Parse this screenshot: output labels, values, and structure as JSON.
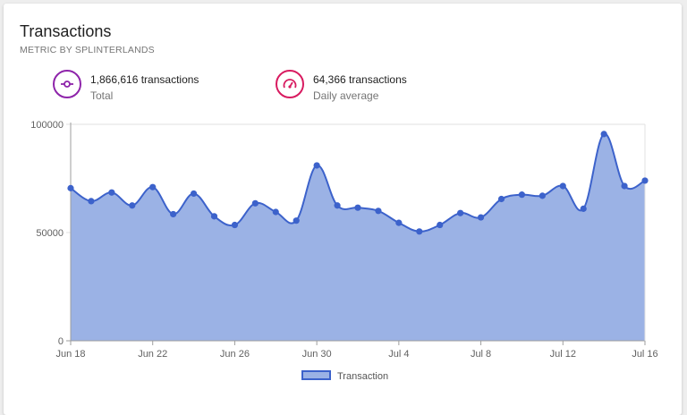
{
  "card": {
    "title": "Transactions",
    "subtitle": "METRIC BY SPLINTERLANDS"
  },
  "stats": [
    {
      "icon": "commit-icon",
      "color": "#8e24aa",
      "value": "1,866,616 transactions",
      "label": "Total"
    },
    {
      "icon": "speedometer-icon",
      "color": "#d81b60",
      "value": "64,366 transactions",
      "label": "Daily average"
    }
  ],
  "colors": {
    "line": "#3c62cb",
    "fill": "#9bb2e5",
    "grid": "#e0e0e0",
    "axis": "#9e9e9e"
  },
  "chart_data": {
    "type": "area",
    "x": [
      "Jun 18",
      "Jun 19",
      "Jun 20",
      "Jun 21",
      "Jun 22",
      "Jun 23",
      "Jun 24",
      "Jun 25",
      "Jun 26",
      "Jun 27",
      "Jun 28",
      "Jun 29",
      "Jun 30",
      "Jul 1",
      "Jul 2",
      "Jul 3",
      "Jul 4",
      "Jul 5",
      "Jul 6",
      "Jul 7",
      "Jul 8",
      "Jul 9",
      "Jul 10",
      "Jul 11",
      "Jul 12",
      "Jul 13",
      "Jul 14",
      "Jul 15",
      "Jul 16"
    ],
    "x_tick_labels": [
      "Jun 18",
      "Jun 22",
      "Jun 26",
      "Jun 30",
      "Jul 4",
      "Jul 8",
      "Jul 12",
      "Jul 16"
    ],
    "series": [
      {
        "name": "Transaction",
        "values": [
          70500,
          64500,
          68500,
          62500,
          71000,
          58500,
          68000,
          57500,
          53500,
          63500,
          59500,
          55500,
          81000,
          62500,
          61500,
          60000,
          54500,
          50500,
          53500,
          59000,
          57000,
          65500,
          67500,
          67000,
          71500,
          61000,
          95500,
          71500,
          74000
        ]
      }
    ],
    "ylim": [
      0,
      100000
    ],
    "y_ticks": [
      0,
      50000,
      100000
    ],
    "grid": true,
    "legend": "bottom"
  }
}
